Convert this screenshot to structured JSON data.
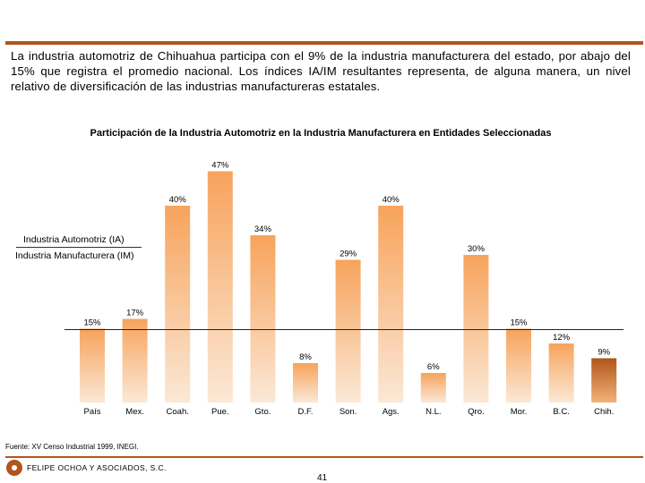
{
  "intro_text": "La industria automotriz de Chihuahua participa con el 9% de la industria manufacturera del estado, por abajo del  15% que registra el promedio nacional. Los índices IA/IM resultantes representa, de alguna manera, un nivel relativo de diversificación de las industrias manufactureras estatales.",
  "legend": {
    "numerator": "Industria Automotriz (IA)",
    "denominator": "Industria Manufacturera (IM)"
  },
  "source": "Fuente: XV Censo Industrial 1999, INEGI.",
  "company": "FELIPE OCHOA Y ASOCIADOS, S.C.",
  "page_number": "41",
  "colors": {
    "accent": "#b3541e",
    "bar_top": "#f7a35c",
    "bar_bottom": "#fbe8d6",
    "highlight_top": "#b0561a",
    "highlight_bottom": "#f2b27a"
  },
  "chart_data": {
    "type": "bar",
    "title": "Participación de la Industria Automotriz en la Industria Manufacturera en Entidades Seleccionadas",
    "categories": [
      "País",
      "Mex.",
      "Coah.",
      "Pue.",
      "Gto.",
      "D.F.",
      "Son.",
      "Ags.",
      "N.L.",
      "Qro.",
      "Mor.",
      "B.C.",
      "Chih."
    ],
    "values": [
      15,
      17,
      40,
      47,
      34,
      8,
      29,
      40,
      6,
      30,
      15,
      12,
      9
    ],
    "labels": [
      "15%",
      "17%",
      "40%",
      "47%",
      "34%",
      "8%",
      "29%",
      "40%",
      "6%",
      "30%",
      "15%",
      "12%",
      "9%"
    ],
    "highlight": "Chih.",
    "reference_line": 15,
    "ylim": [
      0,
      50
    ],
    "xlabel": "",
    "ylabel": "",
    "grid": false
  }
}
